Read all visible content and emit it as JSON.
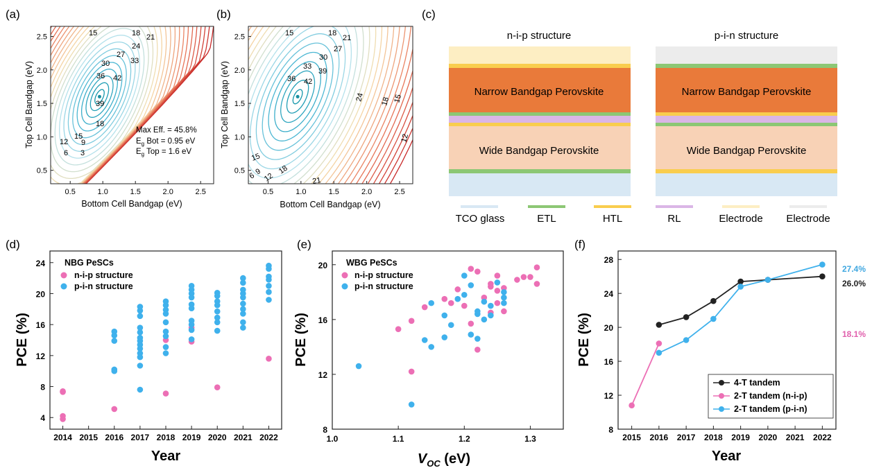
{
  "panel_labels": [
    "(a)",
    "(b)",
    "(c)",
    "(d)",
    "(e)",
    "(f)"
  ],
  "chart_data": [
    {
      "id": "a",
      "type": "heatmap",
      "xlabel": "Bottom Cell Bandgap (eV)",
      "ylabel": "Top Cell Bandgap (eV)",
      "xlim": [
        0.2,
        2.7
      ],
      "ylim": [
        0.3,
        2.65
      ],
      "x_ticks": [
        "0.5",
        "1.0",
        "1.5",
        "2.0",
        "2.5"
      ],
      "y_ticks": [
        "0.5",
        "1.0",
        "1.5",
        "2.0",
        "2.5"
      ],
      "contour_labels": [
        "15",
        "18",
        "21",
        "24",
        "30",
        "27",
        "33",
        "36",
        "42",
        "39",
        "18",
        "12",
        "15",
        "9",
        "6",
        "3"
      ],
      "annotation": {
        "line1": "Max Eff. = 45.8%",
        "line2_pre": "E",
        "line2_sub": "g",
        "line2_post": " Bot = 0.95 eV",
        "line3_pre": "E",
        "line3_sub": "g",
        "line3_post": " Top = 1.6 eV"
      },
      "max_point": [
        0.95,
        1.6
      ]
    },
    {
      "id": "b",
      "type": "heatmap",
      "xlabel": "Bottom Cell Bandgap (eV)",
      "ylabel": "Top Cell Bandgap (eV)",
      "xlim": [
        0.2,
        2.7
      ],
      "ylim": [
        0.3,
        2.65
      ],
      "x_ticks": [
        "0.5",
        "1.0",
        "1.5",
        "2.0",
        "2.5"
      ],
      "y_ticks": [
        "0.5",
        "1.0",
        "1.5",
        "2.0",
        "2.5"
      ],
      "contour_labels": [
        "15",
        "18",
        "21",
        "27",
        "30",
        "33",
        "36",
        "39",
        "42",
        "24",
        "18",
        "15",
        "12",
        "15",
        "9",
        "6",
        "12",
        "18",
        "21"
      ],
      "max_point": [
        0.95,
        1.6
      ]
    },
    {
      "id": "d",
      "type": "scatter",
      "xlabel": "Year",
      "ylabel": "PCE (%)",
      "x_ticks": [
        "2014",
        "2015",
        "2016",
        "2017",
        "2018",
        "2019",
        "2020",
        "2021",
        "2022"
      ],
      "xlim": [
        2013.5,
        2022.5
      ],
      "ylim": [
        2.5,
        25.5
      ],
      "y_ticks": [
        4,
        8,
        12,
        16,
        20,
        24
      ],
      "legend_title": "NBG PeSCs",
      "legend_position": "top-left",
      "series": [
        {
          "name": "n-i-p structure",
          "color": "#ec6fb5",
          "points": [
            [
              2014,
              7.3
            ],
            [
              2014,
              7.4
            ],
            [
              2014,
              4.2
            ],
            [
              2014,
              3.8
            ],
            [
              2016,
              5.1
            ],
            [
              2018,
              7.1
            ],
            [
              2018,
              14.0
            ],
            [
              2019,
              15.6
            ],
            [
              2019,
              13.8
            ],
            [
              2020,
              7.9
            ],
            [
              2022,
              11.6
            ]
          ]
        },
        {
          "name": "p-i-n structure",
          "color": "#3fb1ec",
          "points": [
            [
              2016,
              15.1
            ],
            [
              2016,
              14.6
            ],
            [
              2016,
              13.9
            ],
            [
              2016,
              10.2
            ],
            [
              2016,
              10.0
            ],
            [
              2017,
              18.3
            ],
            [
              2017,
              17.8
            ],
            [
              2017,
              17.1
            ],
            [
              2017,
              15.6
            ],
            [
              2017,
              15.0
            ],
            [
              2017,
              14.3
            ],
            [
              2017,
              13.9
            ],
            [
              2017,
              13.4
            ],
            [
              2017,
              12.9
            ],
            [
              2017,
              12.3
            ],
            [
              2017,
              11.8
            ],
            [
              2017,
              10.7
            ],
            [
              2017,
              7.6
            ],
            [
              2018,
              19.0
            ],
            [
              2018,
              18.5
            ],
            [
              2018,
              17.9
            ],
            [
              2018,
              17.4
            ],
            [
              2018,
              16.3
            ],
            [
              2018,
              15.1
            ],
            [
              2018,
              14.5
            ],
            [
              2018,
              13.1
            ],
            [
              2018,
              12.3
            ],
            [
              2019,
              21.0
            ],
            [
              2019,
              20.5
            ],
            [
              2019,
              20.0
            ],
            [
              2019,
              19.5
            ],
            [
              2019,
              18.6
            ],
            [
              2019,
              18.1
            ],
            [
              2019,
              16.5
            ],
            [
              2019,
              16.0
            ],
            [
              2019,
              15.3
            ],
            [
              2019,
              14.1
            ],
            [
              2020,
              20.1
            ],
            [
              2020,
              19.7
            ],
            [
              2020,
              19.0
            ],
            [
              2020,
              18.5
            ],
            [
              2020,
              17.7
            ],
            [
              2020,
              16.9
            ],
            [
              2020,
              16.3
            ],
            [
              2020,
              15.2
            ],
            [
              2021,
              22.0
            ],
            [
              2021,
              21.4
            ],
            [
              2021,
              20.5
            ],
            [
              2021,
              20.0
            ],
            [
              2021,
              19.5
            ],
            [
              2021,
              18.7
            ],
            [
              2021,
              18.0
            ],
            [
              2021,
              17.4
            ],
            [
              2021,
              16.3
            ],
            [
              2021,
              15.6
            ],
            [
              2022,
              23.6
            ],
            [
              2022,
              23.2
            ],
            [
              2022,
              22.2
            ],
            [
              2022,
              21.8
            ],
            [
              2022,
              21.0
            ],
            [
              2022,
              20.2
            ],
            [
              2022,
              19.2
            ]
          ]
        }
      ]
    },
    {
      "id": "e",
      "type": "scatter",
      "xlabel_pre": "V",
      "xlabel_sub": "OC",
      "xlabel_post": " (eV)",
      "ylabel": "PCE (%)",
      "xlim": [
        1.0,
        1.35
      ],
      "ylim": [
        8,
        21
      ],
      "x_ticks": [
        1.0,
        1.1,
        1.2,
        1.3
      ],
      "x_tick_labels": [
        "1.0",
        "1.1",
        "1.2",
        "1.3"
      ],
      "y_ticks": [
        8,
        12,
        16,
        20
      ],
      "legend_title": "WBG PeSCs",
      "legend_position": "top-left",
      "series": [
        {
          "name": "n-i-p structure",
          "color": "#ec6fb5",
          "points": [
            [
              1.1,
              15.3
            ],
            [
              1.12,
              15.9
            ],
            [
              1.12,
              12.2
            ],
            [
              1.14,
              16.9
            ],
            [
              1.17,
              17.5
            ],
            [
              1.18,
              17.2
            ],
            [
              1.19,
              18.2
            ],
            [
              1.2,
              17.0
            ],
            [
              1.21,
              19.7
            ],
            [
              1.22,
              19.5
            ],
            [
              1.21,
              15.7
            ],
            [
              1.22,
              13.8
            ],
            [
              1.23,
              17.6
            ],
            [
              1.24,
              18.6
            ],
            [
              1.24,
              16.5
            ],
            [
              1.25,
              19.2
            ],
            [
              1.25,
              18.1
            ],
            [
              1.26,
              18.3
            ],
            [
              1.26,
              16.6
            ],
            [
              1.28,
              18.9
            ],
            [
              1.29,
              19.1
            ],
            [
              1.3,
              19.1
            ],
            [
              1.31,
              19.8
            ],
            [
              1.31,
              18.6
            ],
            [
              1.24,
              18.4
            ],
            [
              1.25,
              17.2
            ]
          ]
        },
        {
          "name": "p-i-n structure",
          "color": "#3fb1ec",
          "points": [
            [
              1.04,
              12.6
            ],
            [
              1.12,
              9.8
            ],
            [
              1.14,
              14.5
            ],
            [
              1.15,
              14.0
            ],
            [
              1.15,
              17.2
            ],
            [
              1.17,
              16.3
            ],
            [
              1.17,
              14.7
            ],
            [
              1.18,
              15.6
            ],
            [
              1.19,
              17.5
            ],
            [
              1.2,
              19.2
            ],
            [
              1.2,
              17.8
            ],
            [
              1.21,
              18.5
            ],
            [
              1.21,
              14.9
            ],
            [
              1.22,
              16.6
            ],
            [
              1.22,
              16.4
            ],
            [
              1.22,
              14.6
            ],
            [
              1.23,
              17.3
            ],
            [
              1.23,
              16.0
            ],
            [
              1.24,
              17.0
            ],
            [
              1.24,
              16.3
            ],
            [
              1.25,
              18.7
            ],
            [
              1.26,
              18.0
            ],
            [
              1.26,
              17.6
            ],
            [
              1.26,
              17.2
            ]
          ]
        }
      ]
    },
    {
      "id": "f",
      "type": "line",
      "xlabel": "Year",
      "ylabel": "PCE (%)",
      "x_ticks": [
        "2015",
        "2016",
        "2017",
        "2018",
        "2019",
        "2020",
        "2021",
        "2022"
      ],
      "xlim": [
        2014.5,
        2022.5
      ],
      "ylim": [
        8,
        29
      ],
      "y_ticks": [
        8,
        12,
        16,
        20,
        24,
        28
      ],
      "legend_position": "bottom-right",
      "series": [
        {
          "name": "4-T tandem",
          "color": "#222222",
          "x": [
            2016,
            2017,
            2018,
            2019,
            2020,
            2022
          ],
          "y": [
            20.3,
            21.2,
            23.1,
            25.4,
            25.6,
            26.0
          ]
        },
        {
          "name": "2-T tandem (n-i-p)",
          "color": "#ec6fb5",
          "x": [
            2015,
            2016
          ],
          "y": [
            10.8,
            18.1
          ]
        },
        {
          "name": "2-T tandem (p-i-n)",
          "color": "#3fb1ec",
          "x": [
            2016,
            2017,
            2018,
            2019,
            2020,
            2022
          ],
          "y": [
            17.0,
            18.5,
            21.0,
            24.8,
            25.6,
            27.4
          ]
        }
      ],
      "value_labels": [
        {
          "text": "27.4%",
          "color": "#3fa7e0"
        },
        {
          "text": "26.0%",
          "color": "#222222"
        },
        {
          "text": "18.1%",
          "color": "#e05fac"
        }
      ]
    }
  ],
  "panel_c": {
    "nip_title": "n-i-p structure",
    "pin_title": "p-i-n structure",
    "narrow_label": "Narrow Bandgap Perovskite",
    "wide_label": "Wide Bandgap Perovskite",
    "colors": {
      "tco": "#d8e8f4",
      "etl": "#8cc774",
      "htl": "#f9cd4e",
      "rl": "#dab6e6",
      "electrode_gold": "#fdeec3",
      "electrode_gray": "#ececec",
      "narrow": "#e97a3a",
      "wide": "#f8d2b6"
    },
    "legend": [
      "TCO glass",
      "ETL",
      "HTL",
      "RL",
      "Electrode",
      "Electrode"
    ]
  }
}
